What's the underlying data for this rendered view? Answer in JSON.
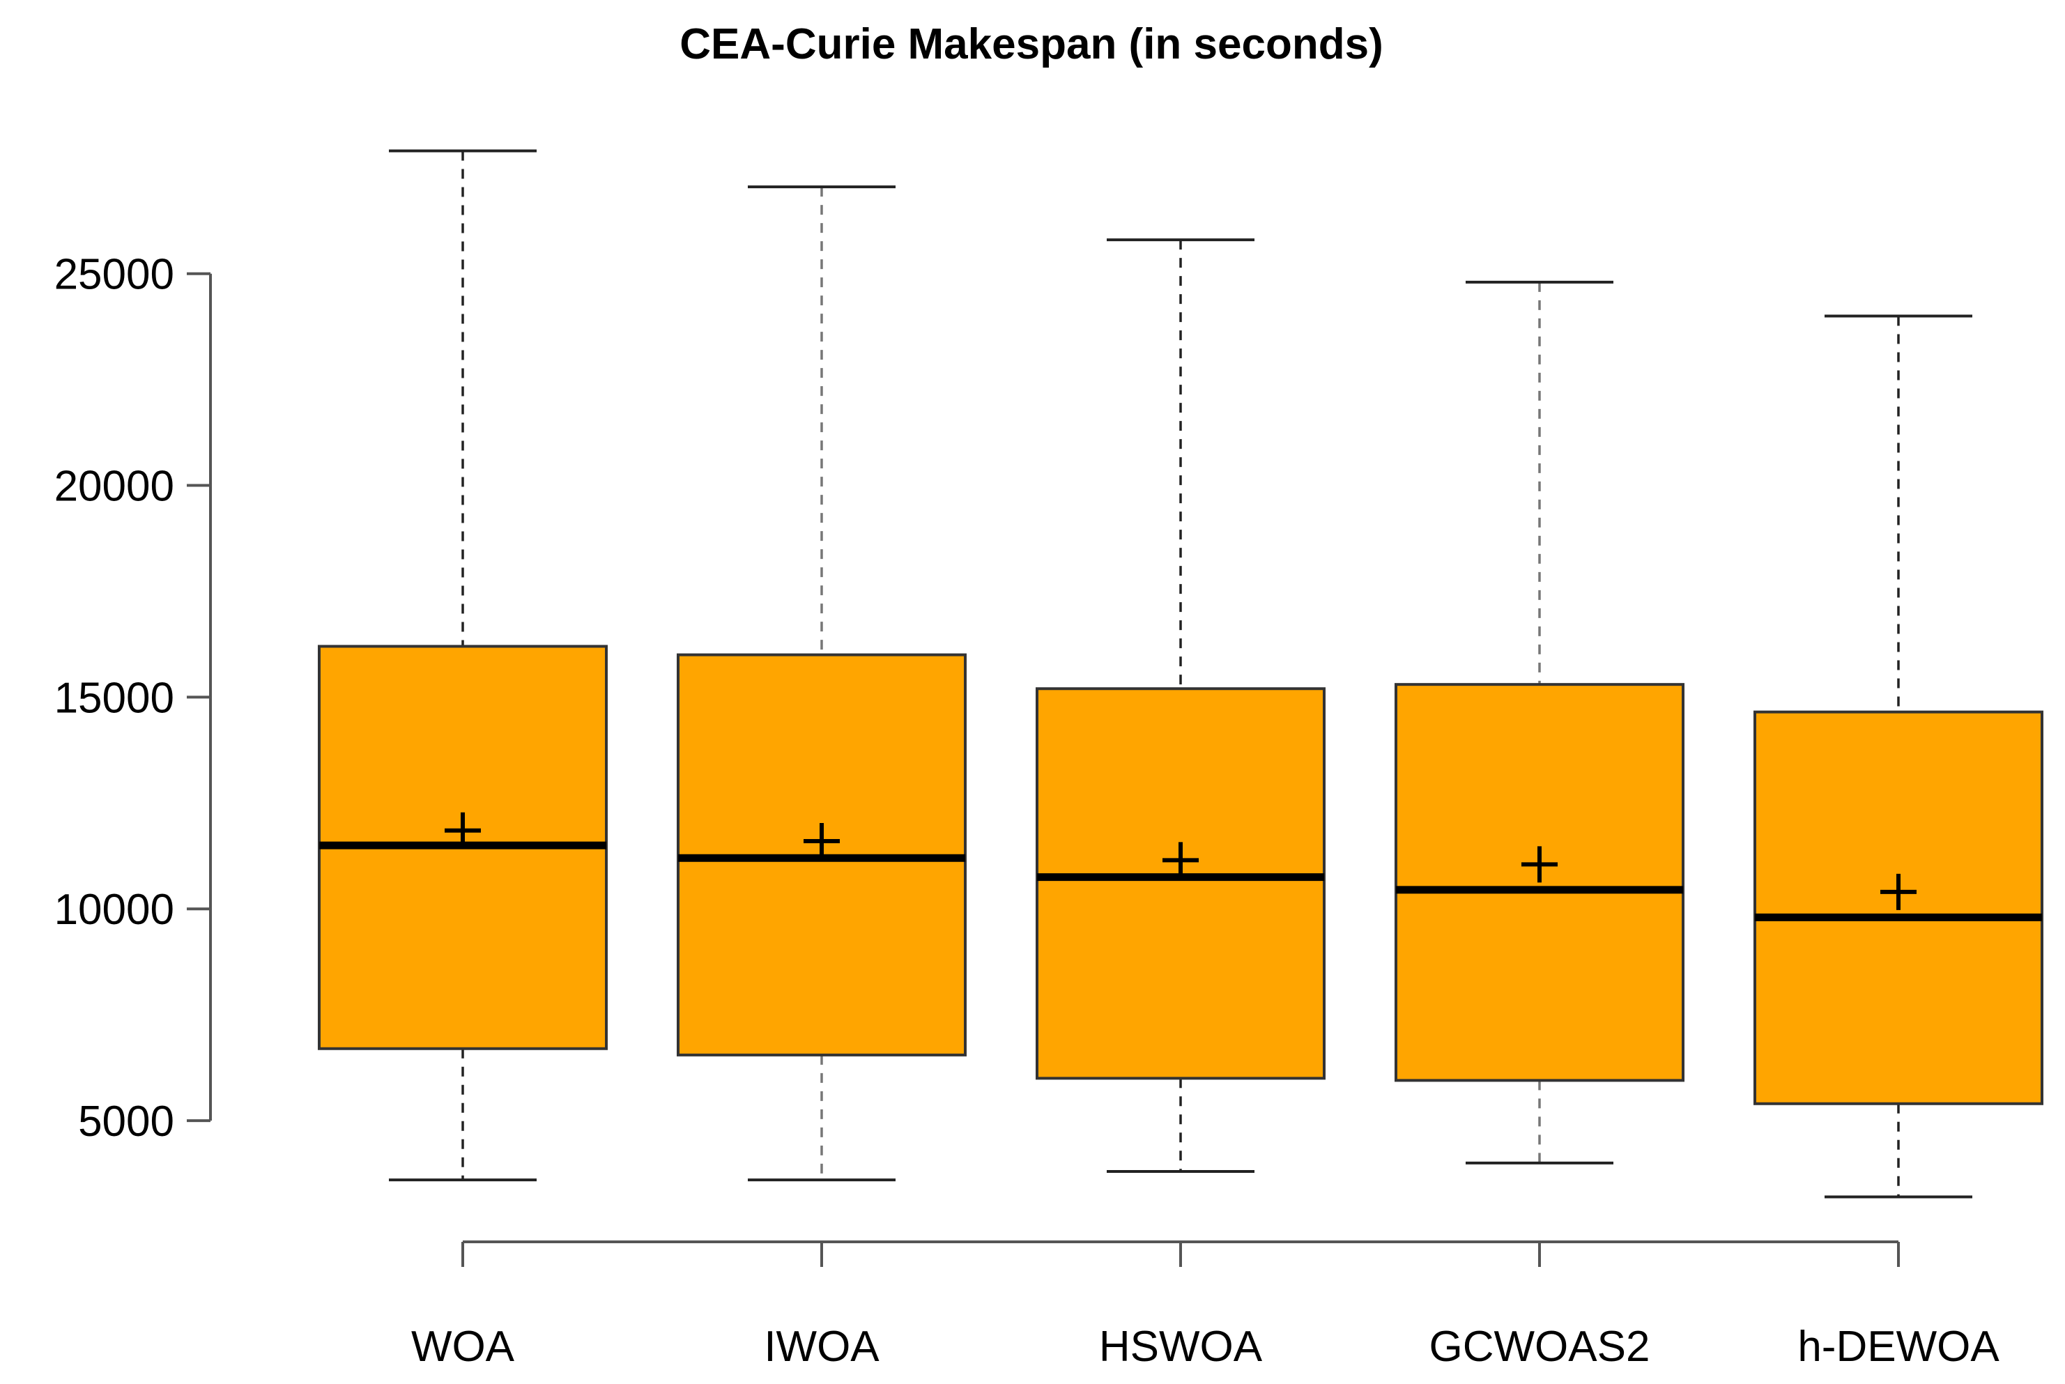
{
  "chart_data": {
    "type": "boxplot",
    "title": "CEA-Curie Makespan (in seconds)",
    "xlabel": "",
    "ylabel": "",
    "ylim": [
      2500,
      28500
    ],
    "yticks": [
      5000,
      10000,
      15000,
      20000,
      25000
    ],
    "ytick_labels": [
      "5000",
      "10000",
      "15000",
      "20000",
      "25000"
    ],
    "categories": [
      "WOA",
      "IWOA",
      "HSWOA",
      "GCWOAS2",
      "h-DEWOA"
    ],
    "box_color": "#FFA500",
    "grid": false,
    "legend": "none",
    "boxes": [
      {
        "label": "WOA",
        "whisker_low": 3600,
        "q1": 6700,
        "median": 11500,
        "q3": 16200,
        "whisker_high": 27900,
        "mean": 11850,
        "dashed_color": "#222222"
      },
      {
        "label": "IWOA",
        "whisker_low": 3600,
        "q1": 6550,
        "median": 11200,
        "q3": 16000,
        "whisker_high": 27050,
        "mean": 11600,
        "dashed_color": "#777777"
      },
      {
        "label": "HSWOA",
        "whisker_low": 3800,
        "q1": 6000,
        "median": 10750,
        "q3": 15200,
        "whisker_high": 25800,
        "mean": 11150,
        "dashed_color": "#222222"
      },
      {
        "label": "GCWOAS2",
        "whisker_low": 4000,
        "q1": 5950,
        "median": 10450,
        "q3": 15300,
        "whisker_high": 24800,
        "mean": 11050,
        "dashed_color": "#777777"
      },
      {
        "label": "h-DEWOA",
        "whisker_low": 3200,
        "q1": 5400,
        "median": 9800,
        "q3": 14650,
        "whisker_high": 24000,
        "mean": 10400,
        "dashed_color": "#222222"
      }
    ]
  }
}
